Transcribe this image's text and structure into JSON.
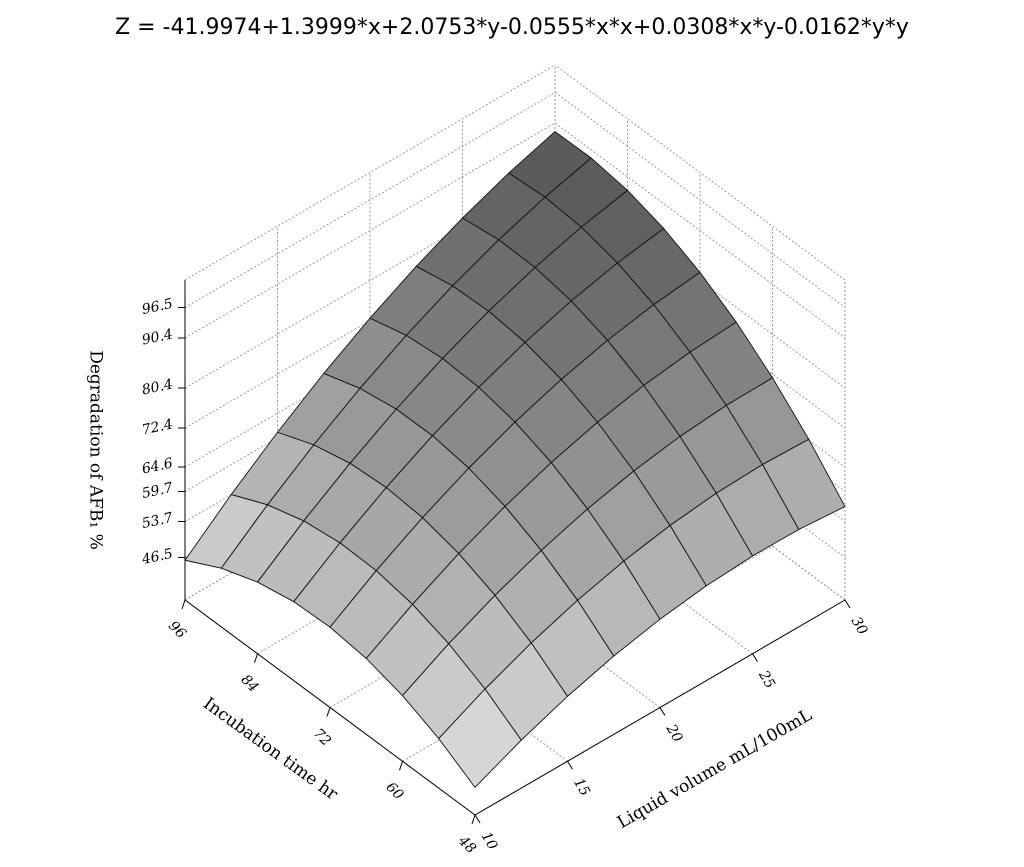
{
  "chart_data": {
    "type": "surface",
    "title": "Z = -41.9974+1.3999*x+2.0753*y-0.0555*x*x+0.0308*x*y-0.0162*y*y",
    "x_label": "Liquid volume mL/100mL",
    "y_label": "Incubation time hr",
    "z_label": "Degradation of AFB₁ %",
    "x": [
      10,
      12.5,
      15,
      17.5,
      20,
      22.5,
      25,
      27.5,
      30
    ],
    "y": [
      48,
      54,
      60,
      66,
      72,
      78,
      84,
      90,
      96
    ],
    "z": [
      [
        43.53,
        47.6,
        50.98,
        53.67,
        55.66,
        56.96,
        57.56,
        57.47,
        56.69
      ],
      [
        47.91,
        52.45,
        56.29,
        59.44,
        61.89,
        63.65,
        64.72,
        65.09,
        64.77
      ],
      [
        51.13,
        56.13,
        60.43,
        64.04,
        66.96,
        69.18,
        70.71,
        71.55,
        71.69
      ],
      [
        53.18,
        58.64,
        63.41,
        67.48,
        70.86,
        73.55,
        75.54,
        76.83,
        77.44
      ],
      [
        54.07,
        59.99,
        65.22,
        69.75,
        73.59,
        76.74,
        79.19,
        80.95,
        82.02
      ],
      [
        53.79,
        60.17,
        65.86,
        70.86,
        75.16,
        78.77,
        81.69,
        83.91,
        85.43
      ],
      [
        52.34,
        59.19,
        65.34,
        70.8,
        75.56,
        79.63,
        83.01,
        85.69,
        87.68
      ],
      [
        49.73,
        57.04,
        63.65,
        69.57,
        74.8,
        79.33,
        83.17,
        86.32,
        88.77
      ],
      [
        45.95,
        53.72,
        60.8,
        67.18,
        72.87,
        77.86,
        82.16,
        85.77,
        88.68
      ]
    ],
    "xlim": [
      10,
      30
    ],
    "ylim": [
      48,
      96
    ],
    "zlim": [
      38,
      102
    ],
    "xticks": [
      10,
      15,
      20,
      25,
      30
    ],
    "yticks": [
      48,
      60,
      72,
      84,
      96
    ],
    "zticks": [
      46.5,
      53.7,
      59.7,
      64.6,
      72.4,
      80.4,
      90.4,
      96.5
    ],
    "grid": true
  }
}
